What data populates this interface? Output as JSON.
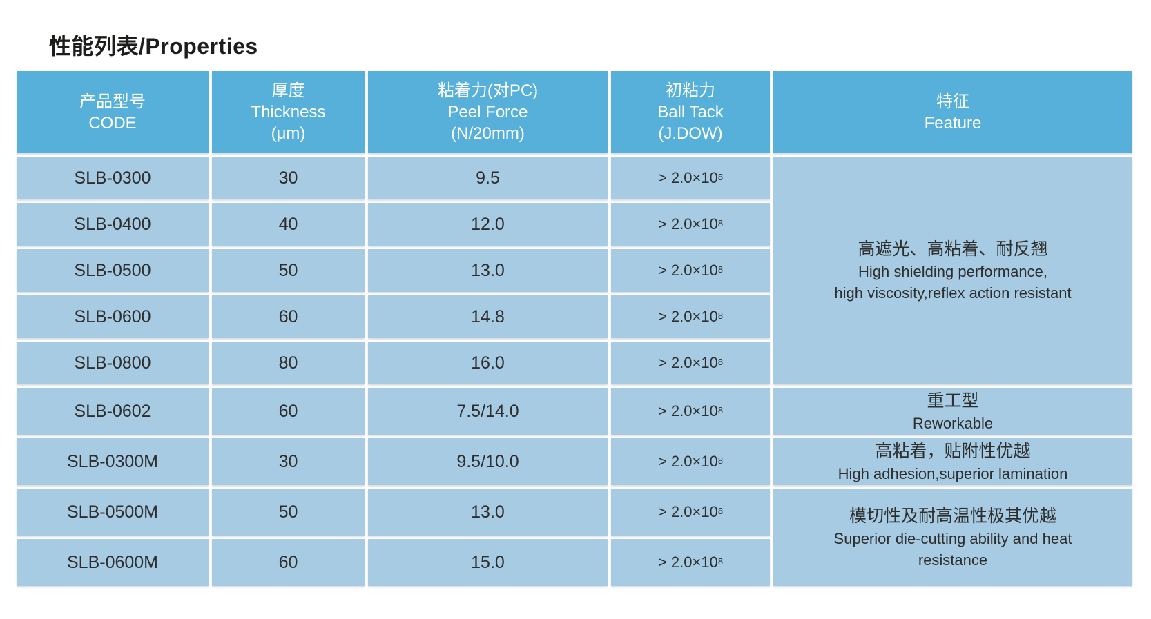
{
  "page": {
    "title": "性能列表/Properties"
  },
  "colors": {
    "header_bg": "#57b0d9",
    "body_bg": "#a7cbe2",
    "header_text": "#ffffff",
    "body_text": "#2e2e2e",
    "title_text": "#1d1d1b"
  },
  "table": {
    "headers": {
      "code": {
        "line1": "产品型号",
        "line2": "CODE"
      },
      "thickness": {
        "line1": "厚度",
        "line2": "Thickness",
        "line3": "(μm)"
      },
      "peel_force": {
        "line1": "粘着力(对PC)",
        "line2": "Peel Force",
        "line3": "(N/20mm)"
      },
      "ball_tack": {
        "line1": "初粘力",
        "line2": "Ball Tack",
        "line3": "(J.DOW)"
      },
      "feature": {
        "line1": "特征",
        "line2": "Feature"
      }
    },
    "rows": [
      {
        "code": "SLB-0300",
        "thickness": "30",
        "peel_force": "9.5",
        "ball_base": "> 2.0×10",
        "ball_exp": "8"
      },
      {
        "code": "SLB-0400",
        "thickness": "40",
        "peel_force": "12.0",
        "ball_base": "> 2.0×10",
        "ball_exp": "8"
      },
      {
        "code": "SLB-0500",
        "thickness": "50",
        "peel_force": "13.0",
        "ball_base": "> 2.0×10",
        "ball_exp": "8"
      },
      {
        "code": "SLB-0600",
        "thickness": "60",
        "peel_force": "14.8",
        "ball_base": "> 2.0×10",
        "ball_exp": "8"
      },
      {
        "code": "SLB-0800",
        "thickness": "80",
        "peel_force": "16.0",
        "ball_base": "> 2.0×10",
        "ball_exp": "8"
      },
      {
        "code": "SLB-0602",
        "thickness": "60",
        "peel_force": "7.5/14.0",
        "ball_base": "> 2.0×10",
        "ball_exp": "8"
      },
      {
        "code": "SLB-0300M",
        "thickness": "30",
        "peel_force": "9.5/10.0",
        "ball_base": "> 2.0×10",
        "ball_exp": "8"
      },
      {
        "code": "SLB-0500M",
        "thickness": "50",
        "peel_force": "13.0",
        "ball_base": "> 2.0×10",
        "ball_exp": "8"
      },
      {
        "code": "SLB-0600M",
        "thickness": "60",
        "peel_force": "15.0",
        "ball_base": "> 2.0×10",
        "ball_exp": "8"
      }
    ],
    "features": [
      {
        "zh": "高遮光、高粘着、耐反翘",
        "en1": "High shielding performance,",
        "en2": "high viscosity,reflex action resistant"
      },
      {
        "zh": "重工型",
        "en1": "Reworkable"
      },
      {
        "zh": "高粘着，贴附性优越",
        "en1": "High adhesion,superior lamination"
      },
      {
        "zh": "模切性及耐高温性极其优越",
        "en1": "Superior die-cutting ability and heat",
        "en2": "resistance"
      }
    ]
  }
}
